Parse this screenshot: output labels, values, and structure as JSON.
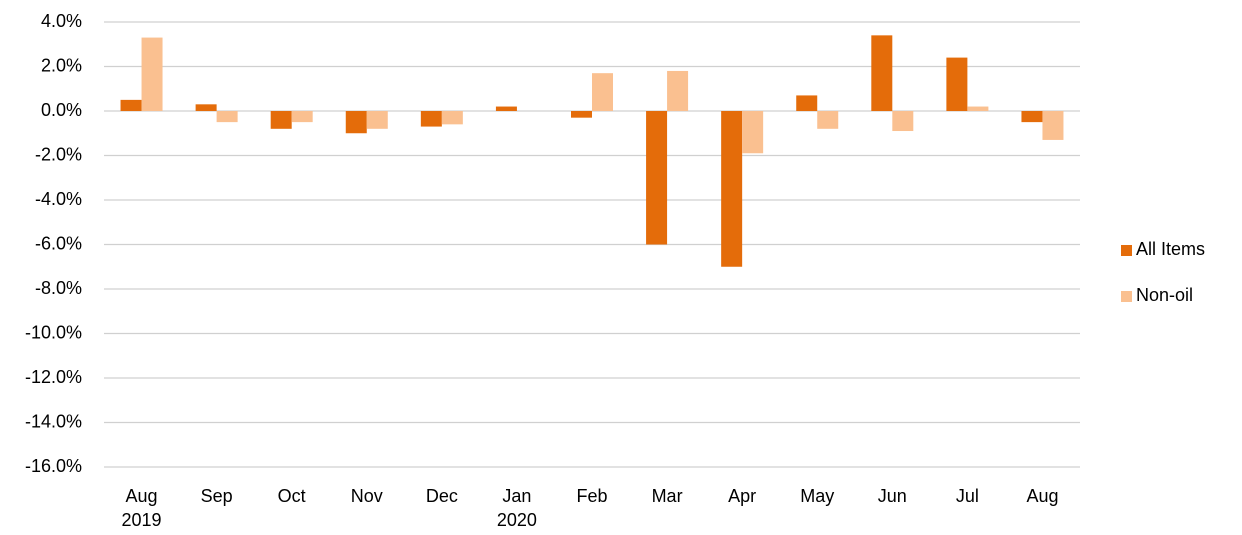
{
  "chart_data": {
    "type": "bar",
    "categories": [
      "Aug\n2019",
      "Sep",
      "Oct",
      "Nov",
      "Dec",
      "Jan\n2020",
      "Feb",
      "Mar",
      "Apr",
      "May",
      "Jun",
      "Jul",
      "Aug"
    ],
    "series": [
      {
        "name": "All Items",
        "color": "#e46c0a",
        "values": [
          0.5,
          0.3,
          -0.8,
          -1.0,
          -0.7,
          0.2,
          -0.3,
          -6.0,
          -7.0,
          0.7,
          3.4,
          2.4,
          -0.5
        ]
      },
      {
        "name": "Non-oil",
        "color": "#fac090",
        "values": [
          3.3,
          -0.5,
          -0.5,
          -0.8,
          -0.6,
          0,
          1.7,
          1.8,
          -1.9,
          -0.8,
          -0.9,
          0.2,
          -1.3
        ]
      }
    ],
    "ylim": [
      -16,
      4
    ],
    "yticks": [
      {
        "value": -16,
        "label": "-16.0%"
      },
      {
        "value": -14,
        "label": "-14.0%"
      },
      {
        "value": -12,
        "label": "-12.0%"
      },
      {
        "value": -10,
        "label": "-10.0%"
      },
      {
        "value": -8,
        "label": "-8.0%"
      },
      {
        "value": -6,
        "label": "-6.0%"
      },
      {
        "value": -4,
        "label": "-4.0%"
      },
      {
        "value": -2,
        "label": "-2.0%"
      },
      {
        "value": 0,
        "label": "0.0%"
      },
      {
        "value": 2,
        "label": "2.0%"
      },
      {
        "value": 4,
        "label": "4.0%"
      }
    ],
    "grid": true,
    "legend": "right"
  }
}
